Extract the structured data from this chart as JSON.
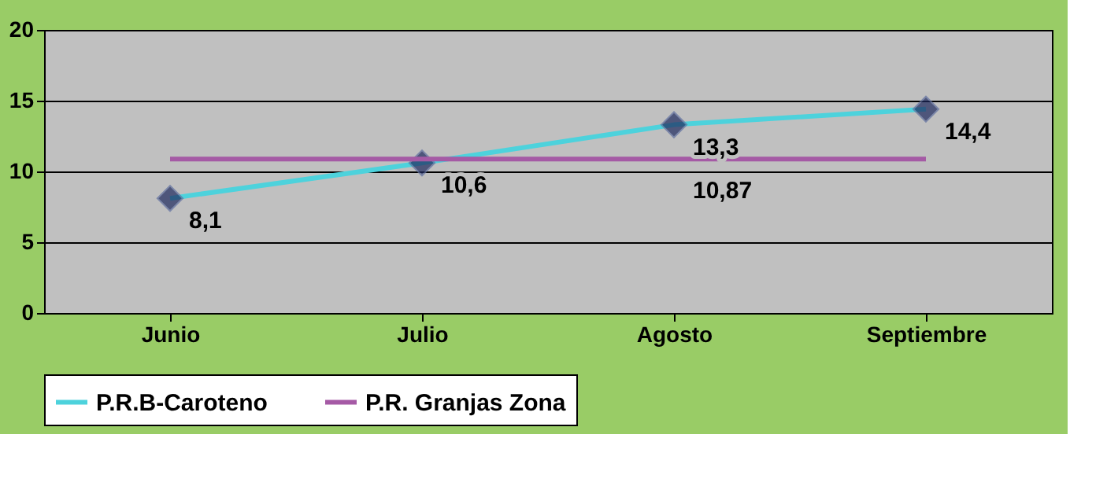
{
  "chart_data": {
    "type": "line",
    "categories": [
      "Junio",
      "Julio",
      "Agosto",
      "Septiembre"
    ],
    "series": [
      {
        "name": "P.R.B-Caroteno",
        "color": "#4dd2dc",
        "marker": "diamond",
        "values": [
          8.1,
          10.6,
          13.3,
          14.4
        ],
        "value_labels": [
          "8,1",
          "10,6",
          "13,3",
          "14,4"
        ]
      },
      {
        "name": "P.R. Granjas Zona",
        "color": "#a55aa5",
        "marker": "none",
        "values": [
          10.87,
          10.87,
          10.87,
          10.87
        ],
        "value_labels": [
          null,
          null,
          "10,87",
          null
        ]
      }
    ],
    "ylim": [
      0,
      20
    ],
    "yticks": [
      0,
      5,
      10,
      15,
      20
    ],
    "grid": "y",
    "legend": "bottom"
  }
}
